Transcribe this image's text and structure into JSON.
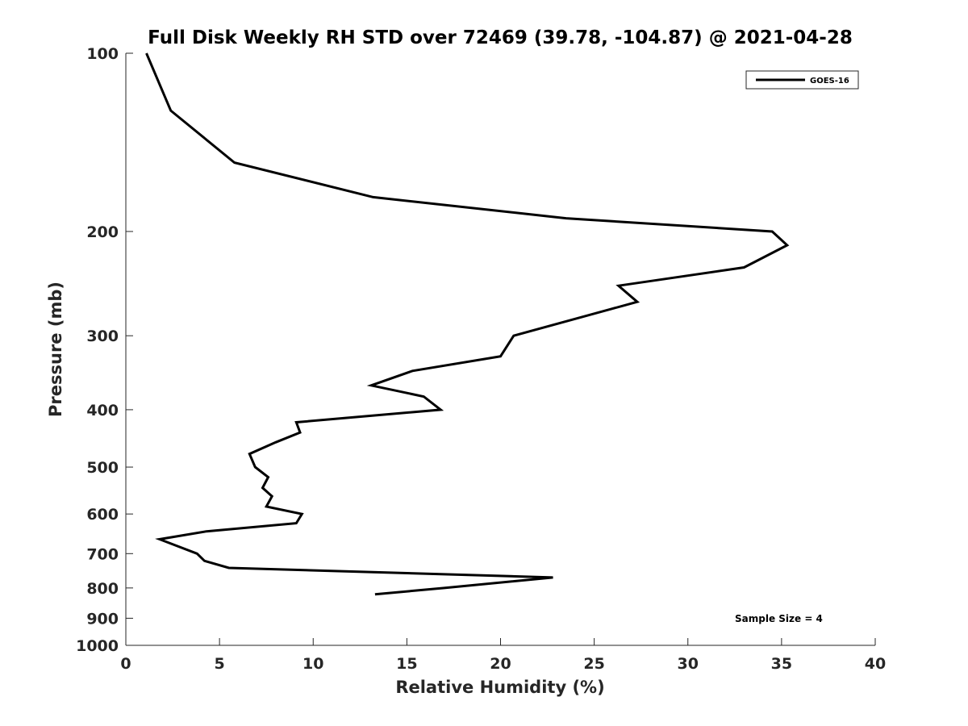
{
  "chart_data": {
    "type": "line",
    "title": "Full Disk Weekly RH STD over 72469 (39.78, -104.87) @ 2021-04-28",
    "xlabel": "Relative Humidity (%)",
    "ylabel": "Pressure (mb)",
    "xlim": [
      0,
      40
    ],
    "ylim": [
      100,
      1000
    ],
    "y_scale": "log",
    "y_reversed": true,
    "xticks": [
      0,
      5,
      10,
      15,
      20,
      25,
      30,
      35,
      40
    ],
    "yticks": [
      100,
      200,
      300,
      400,
      500,
      600,
      700,
      800,
      900,
      1000
    ],
    "grid": false,
    "legend_position": "top-right",
    "series": [
      {
        "name": "GOES-16",
        "color": "#000000",
        "points": [
          [
            1.1,
            100
          ],
          [
            2.4,
            125
          ],
          [
            5.8,
            153
          ],
          [
            13.2,
            175
          ],
          [
            23.5,
            190
          ],
          [
            34.5,
            200
          ],
          [
            35.3,
            211
          ],
          [
            33.0,
            230
          ],
          [
            26.3,
            247
          ],
          [
            27.3,
            263
          ],
          [
            20.7,
            300
          ],
          [
            20.0,
            325
          ],
          [
            15.3,
            344
          ],
          [
            13.1,
            364
          ],
          [
            15.9,
            380
          ],
          [
            16.8,
            400
          ],
          [
            9.1,
            420
          ],
          [
            9.3,
            437
          ],
          [
            8.0,
            454
          ],
          [
            6.6,
            475
          ],
          [
            6.9,
            500
          ],
          [
            7.6,
            520
          ],
          [
            7.3,
            542
          ],
          [
            7.8,
            560
          ],
          [
            7.5,
            583
          ],
          [
            9.4,
            600
          ],
          [
            9.1,
            622
          ],
          [
            4.3,
            642
          ],
          [
            1.8,
            662
          ],
          [
            3.8,
            700
          ],
          [
            4.2,
            720
          ],
          [
            5.5,
            740
          ],
          [
            22.8,
            768
          ],
          [
            17.0,
            800
          ],
          [
            13.3,
            820
          ]
        ]
      }
    ],
    "annotations": [
      "Sample Size = 4"
    ]
  }
}
